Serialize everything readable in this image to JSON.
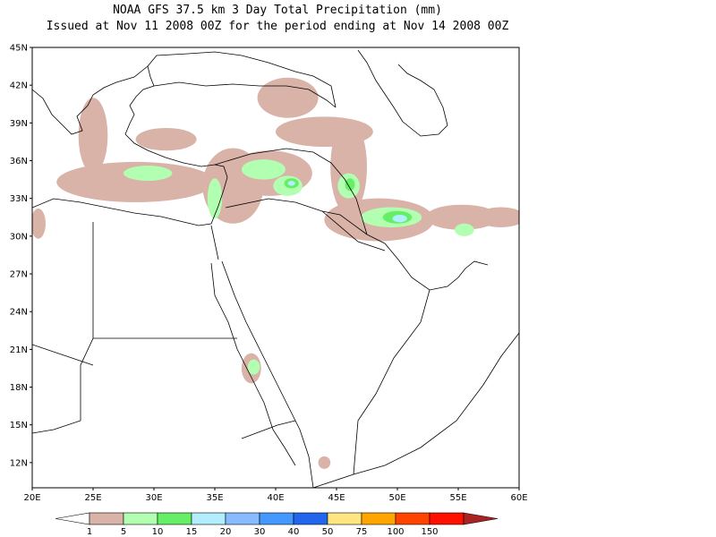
{
  "title": {
    "line1": "NOAA GFS 37.5 km 3 Day Total Precipitation (mm)",
    "line2": "Issued at Nov 11 2008 00Z for the period ending at Nov 14 2008 00Z"
  },
  "map": {
    "lat_labels": [
      "45N",
      "42N",
      "39N",
      "36N",
      "33N",
      "30N",
      "27N",
      "24N",
      "21N",
      "18N",
      "15N",
      "12N"
    ],
    "lon_labels": [
      "20E",
      "25E",
      "30E",
      "35E",
      "40E",
      "45E",
      "50E",
      "55E",
      "60E"
    ],
    "lat_range": [
      10,
      45
    ],
    "lon_range": [
      20,
      60
    ]
  },
  "legend": {
    "labels": [
      "1",
      "5",
      "10",
      "15",
      "20",
      "30",
      "40",
      "50",
      "75",
      "100",
      "150"
    ],
    "colors": [
      "#ffffff",
      "#d9b2a8",
      "#b2ffb2",
      "#66ee66",
      "#b2eeff",
      "#88bbff",
      "#4499ff",
      "#2266ee",
      "#ffe680",
      "#ffa500",
      "#ff4400",
      "#ff1100",
      "#aa2222"
    ]
  },
  "precip_areas": [
    {
      "level": 1,
      "lon": 28.5,
      "lat": 34.3,
      "rlon": 6.5,
      "rlat": 1.6
    },
    {
      "level": 1,
      "lon": 25.0,
      "lat": 38.0,
      "rlon": 1.2,
      "rlat": 3.0
    },
    {
      "level": 1,
      "lon": 36.5,
      "lat": 34.0,
      "rlon": 2.5,
      "rlat": 3.0
    },
    {
      "level": 1,
      "lon": 39.5,
      "lat": 35.0,
      "rlon": 3.5,
      "rlat": 1.8
    },
    {
      "level": 1,
      "lon": 41.0,
      "lat": 41.0,
      "rlon": 2.5,
      "rlat": 1.6
    },
    {
      "level": 1,
      "lon": 46.0,
      "lat": 35.5,
      "rlon": 1.5,
      "rlat": 3.8
    },
    {
      "level": 1,
      "lon": 48.5,
      "lat": 31.3,
      "rlon": 4.5,
      "rlat": 1.7
    },
    {
      "level": 1,
      "lon": 55.3,
      "lat": 31.5,
      "rlon": 3.0,
      "rlat": 1.0
    },
    {
      "level": 1,
      "lon": 58.5,
      "lat": 31.5,
      "rlon": 2.0,
      "rlat": 0.8
    },
    {
      "level": 1,
      "lon": 44.0,
      "lat": 38.3,
      "rlon": 4.0,
      "rlat": 1.2
    },
    {
      "level": 1,
      "lon": 31.0,
      "lat": 37.7,
      "rlon": 2.5,
      "rlat": 0.9
    },
    {
      "level": 1,
      "lon": 38.0,
      "lat": 19.5,
      "rlon": 0.8,
      "rlat": 1.2
    },
    {
      "level": 1,
      "lon": 20.5,
      "lat": 31.0,
      "rlon": 0.6,
      "rlat": 1.2
    },
    {
      "level": 1,
      "lon": 44.0,
      "lat": 12.0,
      "rlon": 0.5,
      "rlat": 0.5
    },
    {
      "level": 2,
      "lon": 29.5,
      "lat": 35.0,
      "rlon": 2.0,
      "rlat": 0.6
    },
    {
      "level": 2,
      "lon": 35.0,
      "lat": 33.0,
      "rlon": 0.6,
      "rlat": 1.6
    },
    {
      "level": 2,
      "lon": 39.0,
      "lat": 35.3,
      "rlon": 1.8,
      "rlat": 0.8
    },
    {
      "level": 2,
      "lon": 41.0,
      "lat": 34.0,
      "rlon": 1.2,
      "rlat": 0.8
    },
    {
      "level": 2,
      "lon": 46.0,
      "lat": 34.0,
      "rlon": 0.9,
      "rlat": 1.0
    },
    {
      "level": 2,
      "lon": 49.5,
      "lat": 31.5,
      "rlon": 2.5,
      "rlat": 0.8
    },
    {
      "level": 2,
      "lon": 55.5,
      "lat": 30.5,
      "rlon": 0.8,
      "rlat": 0.5
    },
    {
      "level": 2,
      "lon": 38.2,
      "lat": 19.6,
      "rlon": 0.5,
      "rlat": 0.6
    },
    {
      "level": 3,
      "lon": 50.0,
      "lat": 31.5,
      "rlon": 1.2,
      "rlat": 0.5
    },
    {
      "level": 3,
      "lon": 41.3,
      "lat": 34.2,
      "rlon": 0.6,
      "rlat": 0.4
    },
    {
      "level": 3,
      "lon": 46.1,
      "lat": 34.1,
      "rlon": 0.4,
      "rlat": 0.5
    },
    {
      "level": 4,
      "lon": 50.2,
      "lat": 31.4,
      "rlon": 0.6,
      "rlat": 0.3
    },
    {
      "level": 4,
      "lon": 41.3,
      "lat": 34.2,
      "rlon": 0.3,
      "rlat": 0.2
    }
  ]
}
